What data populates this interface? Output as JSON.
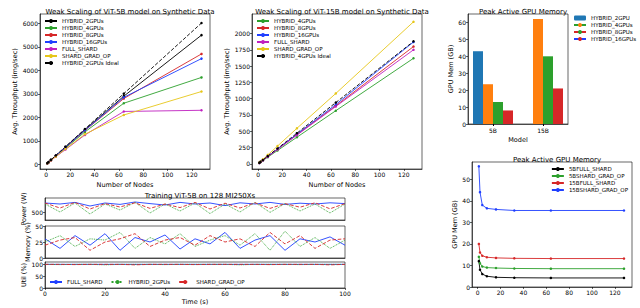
{
  "chart_data": [
    {
      "type": "line",
      "title": "Weak Scaling of ViT-5B model on Synthetic Data",
      "x_label": "Number of Nodes",
      "y_label": "Avg. Throughput (img/sec)",
      "x": [
        1,
        2,
        4,
        8,
        16,
        32,
        64,
        128
      ],
      "xlim": [
        -5,
        135
      ],
      "xticks": [
        0,
        20,
        40,
        60,
        80,
        100,
        120
      ],
      "ylim": [
        -200,
        6400
      ],
      "yticks": [
        0,
        1000,
        2000,
        3000,
        4000,
        5000,
        6000
      ],
      "grid": false,
      "legend": "upper left",
      "series": [
        {
          "name": "HYBRID_2GPUs",
          "color": "#000000",
          "marker": "o",
          "line_style": "solid",
          "values": [
            47,
            94,
            188,
            370,
            740,
            1480,
            2900,
            5500
          ]
        },
        {
          "name": "HYBRID_4GPUs",
          "color": "#2ca02c",
          "marker": "o",
          "line_style": "solid",
          "values": [
            45,
            90,
            178,
            350,
            690,
            1380,
            2600,
            3700
          ]
        },
        {
          "name": "HYBRID_8GPUs",
          "color": "#d62728",
          "marker": "o",
          "line_style": "solid",
          "values": [
            46,
            92,
            183,
            360,
            720,
            1440,
            2800,
            4700
          ]
        },
        {
          "name": "HYBRID_16GPUs",
          "color": "#1f3fff",
          "marker": "o",
          "line_style": "solid",
          "values": [
            46,
            92,
            182,
            362,
            725,
            1450,
            2850,
            4500
          ]
        },
        {
          "name": "FULL_SHARD",
          "color": "#c020c0",
          "marker": "o",
          "line_style": "solid",
          "values": [
            40,
            80,
            160,
            320,
            630,
            1250,
            2250,
            2300
          ]
        },
        {
          "name": "SHARD_GRAD_OP",
          "color": "#e6c619",
          "marker": "o",
          "line_style": "solid",
          "values": [
            42,
            84,
            168,
            330,
            650,
            1280,
            2100,
            3100
          ]
        },
        {
          "name": "HYBRID_2GPUs Ideal",
          "color": "#000000",
          "marker": "o",
          "line_style": "dashed",
          "values": [
            47,
            94,
            188,
            376,
            752,
            1504,
            3008,
            6016
          ]
        }
      ]
    },
    {
      "type": "line",
      "title": "Weak Scaling of ViT-15B model on Synthetic Data",
      "x_label": "Number of Nodes",
      "y_label": "Avg. Throughput (img/sec)",
      "x": [
        1,
        2,
        4,
        8,
        16,
        32,
        64,
        128
      ],
      "xlim": [
        -5,
        135
      ],
      "xticks": [
        0,
        20,
        40,
        60,
        80,
        100,
        120
      ],
      "ylim": [
        -80,
        2300
      ],
      "yticks": [
        0,
        250,
        500,
        750,
        1000,
        1250,
        1500,
        1750,
        2000
      ],
      "grid": false,
      "legend": "upper left",
      "series": [
        {
          "name": "HYBRID_4GPUs",
          "color": "#2ca02c",
          "marker": "o",
          "line_style": "solid",
          "values": [
            13,
            26,
            51,
            102,
            204,
            408,
            815,
            1620
          ]
        },
        {
          "name": "HYBRID_8GPUs",
          "color": "#d62728",
          "marker": "o",
          "line_style": "solid",
          "values": [
            14,
            28,
            56,
            112,
            224,
            448,
            890,
            1800
          ]
        },
        {
          "name": "HYBRID_16GPUs",
          "color": "#1f3fff",
          "marker": "o",
          "line_style": "solid",
          "values": [
            14,
            29,
            57,
            114,
            228,
            456,
            910,
            1870
          ]
        },
        {
          "name": "FULL_SHARD",
          "color": "#c020c0",
          "marker": "o",
          "line_style": "solid",
          "values": [
            14,
            28,
            55,
            110,
            220,
            440,
            880,
            1750
          ]
        },
        {
          "name": "SHARD_GRAD_OP",
          "color": "#e6c619",
          "marker": "o",
          "line_style": "solid",
          "values": [
            17,
            34,
            68,
            136,
            272,
            545,
            1080,
            2180
          ]
        },
        {
          "name": "HYBRID_4GPUs Ideal",
          "color": "#000000",
          "marker": "o",
          "line_style": "dashed",
          "values": [
            14.7,
            29.4,
            58.8,
            117.6,
            235,
            470,
            940,
            1880
          ]
        }
      ]
    },
    {
      "type": "bar",
      "title": "Peak Active GPU Memory",
      "x_label": "Model",
      "y_label": "GPU Mem (GB)",
      "categories": [
        "5B",
        "15B"
      ],
      "ylim": [
        0,
        65
      ],
      "yticks": [
        0,
        10,
        20,
        30,
        40,
        50,
        60
      ],
      "grid": false,
      "legend": "right",
      "series": [
        {
          "name": "HYBRID_2GPU",
          "color": "#1f77b4",
          "values": [
            43,
            null
          ]
        },
        {
          "name": "HYBRID_4GPUs",
          "color": "#ff7f0e",
          "values": [
            23.5,
            62
          ]
        },
        {
          "name": "HYBRID_8GPUs",
          "color": "#2ca02c",
          "values": [
            13,
            40
          ]
        },
        {
          "name": "HYBRID_16GPUs",
          "color": "#d62728",
          "values": [
            8,
            21
          ]
        }
      ]
    },
    {
      "type": "line",
      "title": "Training ViT-5B on 128 MI250Xs",
      "y_label": "Power (W)",
      "x": [
        0,
        5,
        10,
        15,
        20,
        25,
        30,
        35,
        40,
        45,
        50,
        55,
        60,
        65,
        70,
        75,
        80,
        85,
        90,
        95,
        100
      ],
      "xlim": [
        0,
        100
      ],
      "ylim": [
        460,
        570
      ],
      "yticks": [
        500
      ],
      "grid": false,
      "series": [
        {
          "name": "FULL_SHARD",
          "color": "#1f3fff",
          "line_style": "solid",
          "values": [
            545,
            540,
            548,
            530,
            545,
            538,
            550,
            542,
            535,
            548,
            540,
            545,
            532,
            546,
            540,
            548,
            538,
            544,
            540,
            546,
            542
          ]
        },
        {
          "name": "HYBRID_2GPUs",
          "color": "#2ca02c",
          "line_style": "dotted",
          "values": [
            540,
            500,
            545,
            490,
            540,
            510,
            548,
            495,
            540,
            505,
            545,
            492,
            540,
            500,
            548,
            498,
            542,
            505,
            540,
            495,
            540
          ]
        },
        {
          "name": "SHARD_GRAD_OP",
          "color": "#d62728",
          "line_style": "dashed",
          "values": [
            545,
            520,
            548,
            515,
            542,
            525,
            546,
            518,
            540,
            522,
            548,
            515,
            544,
            520,
            546,
            518,
            542,
            524,
            546,
            516,
            542
          ]
        }
      ]
    },
    {
      "type": "line",
      "y_label": "Memory (%)",
      "x": [
        0,
        5,
        10,
        15,
        20,
        25,
        30,
        35,
        40,
        45,
        50,
        55,
        60,
        65,
        70,
        75,
        80,
        85,
        90,
        95,
        100
      ],
      "xlim": [
        0,
        100
      ],
      "ylim": [
        0,
        50
      ],
      "yticks": [
        0,
        25,
        50
      ],
      "grid": false,
      "series": [
        {
          "name": "FULL_SHARD",
          "color": "#1f3fff",
          "line_style": "solid",
          "values": [
            30,
            15,
            35,
            20,
            38,
            12,
            32,
            25,
            36,
            14,
            30,
            22,
            40,
            15,
            28,
            35,
            12,
            30,
            25,
            33,
            20
          ]
        },
        {
          "name": "HYBRID_2GPUs",
          "color": "#2ca02c",
          "line_style": "dotted",
          "values": [
            25,
            35,
            18,
            30,
            28,
            40,
            15,
            32,
            22,
            38,
            18,
            28,
            35,
            20,
            38,
            12,
            42,
            18,
            32,
            15,
            28
          ]
        },
        {
          "name": "SHARD_GRAD_OP",
          "color": "#d62728",
          "line_style": "dashed",
          "values": [
            20,
            28,
            32,
            12,
            25,
            30,
            38,
            18,
            28,
            32,
            20,
            35,
            25,
            30,
            18,
            40,
            22,
            35,
            15,
            28,
            30
          ]
        }
      ]
    },
    {
      "type": "line",
      "x_label": "Time (s)",
      "y_label": "Util (%)",
      "x": [
        0,
        5,
        10,
        15,
        20,
        25,
        30,
        35,
        40,
        45,
        50,
        55,
        60,
        65,
        70,
        75,
        80,
        85,
        90,
        95,
        100
      ],
      "xlim": [
        0,
        100
      ],
      "xticks": [
        0,
        20,
        40,
        60,
        80,
        100
      ],
      "ylim": [
        0,
        110
      ],
      "yticks": [
        0,
        50,
        100
      ],
      "grid": false,
      "legend": "lower left",
      "series": [
        {
          "name": "FULL_SHARD",
          "color": "#1f3fff",
          "line_style": "solid",
          "values": [
            100,
            100,
            100,
            100,
            100,
            100,
            100,
            100,
            100,
            100,
            100,
            100,
            100,
            100,
            100,
            100,
            100,
            100,
            100,
            100,
            100
          ]
        },
        {
          "name": "HYBRID_2GPUs",
          "color": "#2ca02c",
          "line_style": "dotted",
          "values": [
            100,
            99,
            100,
            100,
            98,
            100,
            100,
            100,
            99,
            100,
            100,
            100,
            100,
            98,
            100,
            100,
            100,
            99,
            100,
            100,
            100
          ]
        },
        {
          "name": "SHARD_GRAD_OP",
          "color": "#d62728",
          "line_style": "dashed",
          "values": [
            100,
            100,
            99,
            100,
            100,
            100,
            98,
            100,
            100,
            100,
            99,
            100,
            100,
            100,
            100,
            99,
            100,
            100,
            100,
            98,
            100
          ]
        }
      ]
    },
    {
      "type": "line",
      "title": "Peak Active GPU Memory",
      "y_label": "GPU Mem (GB)",
      "x": [
        1,
        2,
        4,
        8,
        16,
        32,
        64,
        128
      ],
      "xlim": [
        -5,
        135
      ],
      "xticks": [
        0,
        20,
        40,
        60,
        80,
        100,
        120
      ],
      "ylim": [
        0,
        58
      ],
      "yticks": [
        0,
        10,
        20,
        30,
        40,
        50
      ],
      "grid": false,
      "legend": "upper right",
      "series": [
        {
          "name": "5BFULL_SHARD",
          "color": "#000000",
          "marker": "o",
          "line_style": "solid",
          "values": [
            12,
            8,
            6,
            5,
            4.5,
            4.3,
            4.2,
            4.2
          ]
        },
        {
          "name": "5BSHARD_GRAD_OP",
          "color": "#2ca02c",
          "marker": "o",
          "line_style": "solid",
          "values": [
            14,
            11,
            9.5,
            9,
            8.8,
            8.6,
            8.5,
            8.5
          ]
        },
        {
          "name": "15BFULL_SHARD",
          "color": "#d62728",
          "marker": "o",
          "line_style": "solid",
          "values": [
            20,
            16,
            14.5,
            13.8,
            13.5,
            13.3,
            13.2,
            13.2
          ]
        },
        {
          "name": "15BSHARD_GRAD_OP",
          "color": "#1f3fff",
          "marker": "o",
          "line_style": "solid",
          "values": [
            56,
            44,
            38,
            36.5,
            36,
            35.5,
            35.5,
            35.5
          ]
        }
      ]
    }
  ]
}
